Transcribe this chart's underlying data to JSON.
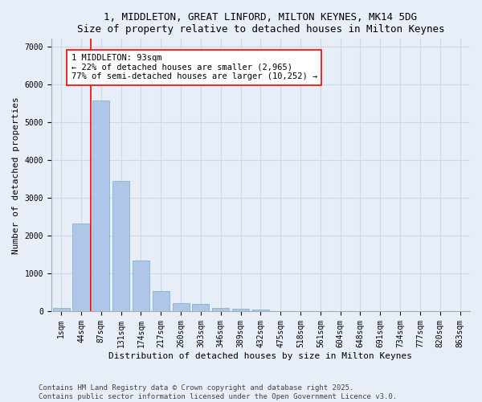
{
  "title_line1": "1, MIDDLETON, GREAT LINFORD, MILTON KEYNES, MK14 5DG",
  "title_line2": "Size of property relative to detached houses in Milton Keynes",
  "xlabel": "Distribution of detached houses by size in Milton Keynes",
  "ylabel": "Number of detached properties",
  "bar_labels": [
    "1sqm",
    "44sqm",
    "87sqm",
    "131sqm",
    "174sqm",
    "217sqm",
    "260sqm",
    "303sqm",
    "346sqm",
    "389sqm",
    "432sqm",
    "475sqm",
    "518sqm",
    "561sqm",
    "604sqm",
    "648sqm",
    "691sqm",
    "734sqm",
    "777sqm",
    "820sqm",
    "863sqm"
  ],
  "bar_values": [
    80,
    2310,
    5580,
    3450,
    1330,
    530,
    210,
    185,
    90,
    55,
    40,
    0,
    0,
    0,
    0,
    0,
    0,
    0,
    0,
    0,
    0
  ],
  "bar_color": "#aec6e8",
  "bar_edgecolor": "#7aaac8",
  "vline_color": "red",
  "vline_x_idx": 2,
  "annotation_text": "1 MIDDLETON: 93sqm\n← 22% of detached houses are smaller (2,965)\n77% of semi-detached houses are larger (10,252) →",
  "box_facecolor": "white",
  "box_edgecolor": "red",
  "ylim": [
    0,
    7200
  ],
  "yticks": [
    0,
    1000,
    2000,
    3000,
    4000,
    5000,
    6000,
    7000
  ],
  "bg_color": "#e8eef8",
  "footer_line1": "Contains HM Land Registry data © Crown copyright and database right 2025.",
  "footer_line2": "Contains public sector information licensed under the Open Government Licence v3.0.",
  "title_fontsize": 9,
  "axis_label_fontsize": 8,
  "tick_fontsize": 7,
  "annotation_fontsize": 7.5,
  "footer_fontsize": 6.5,
  "grid_color": "#d0d8e8",
  "spine_color": "#aaaaaa"
}
